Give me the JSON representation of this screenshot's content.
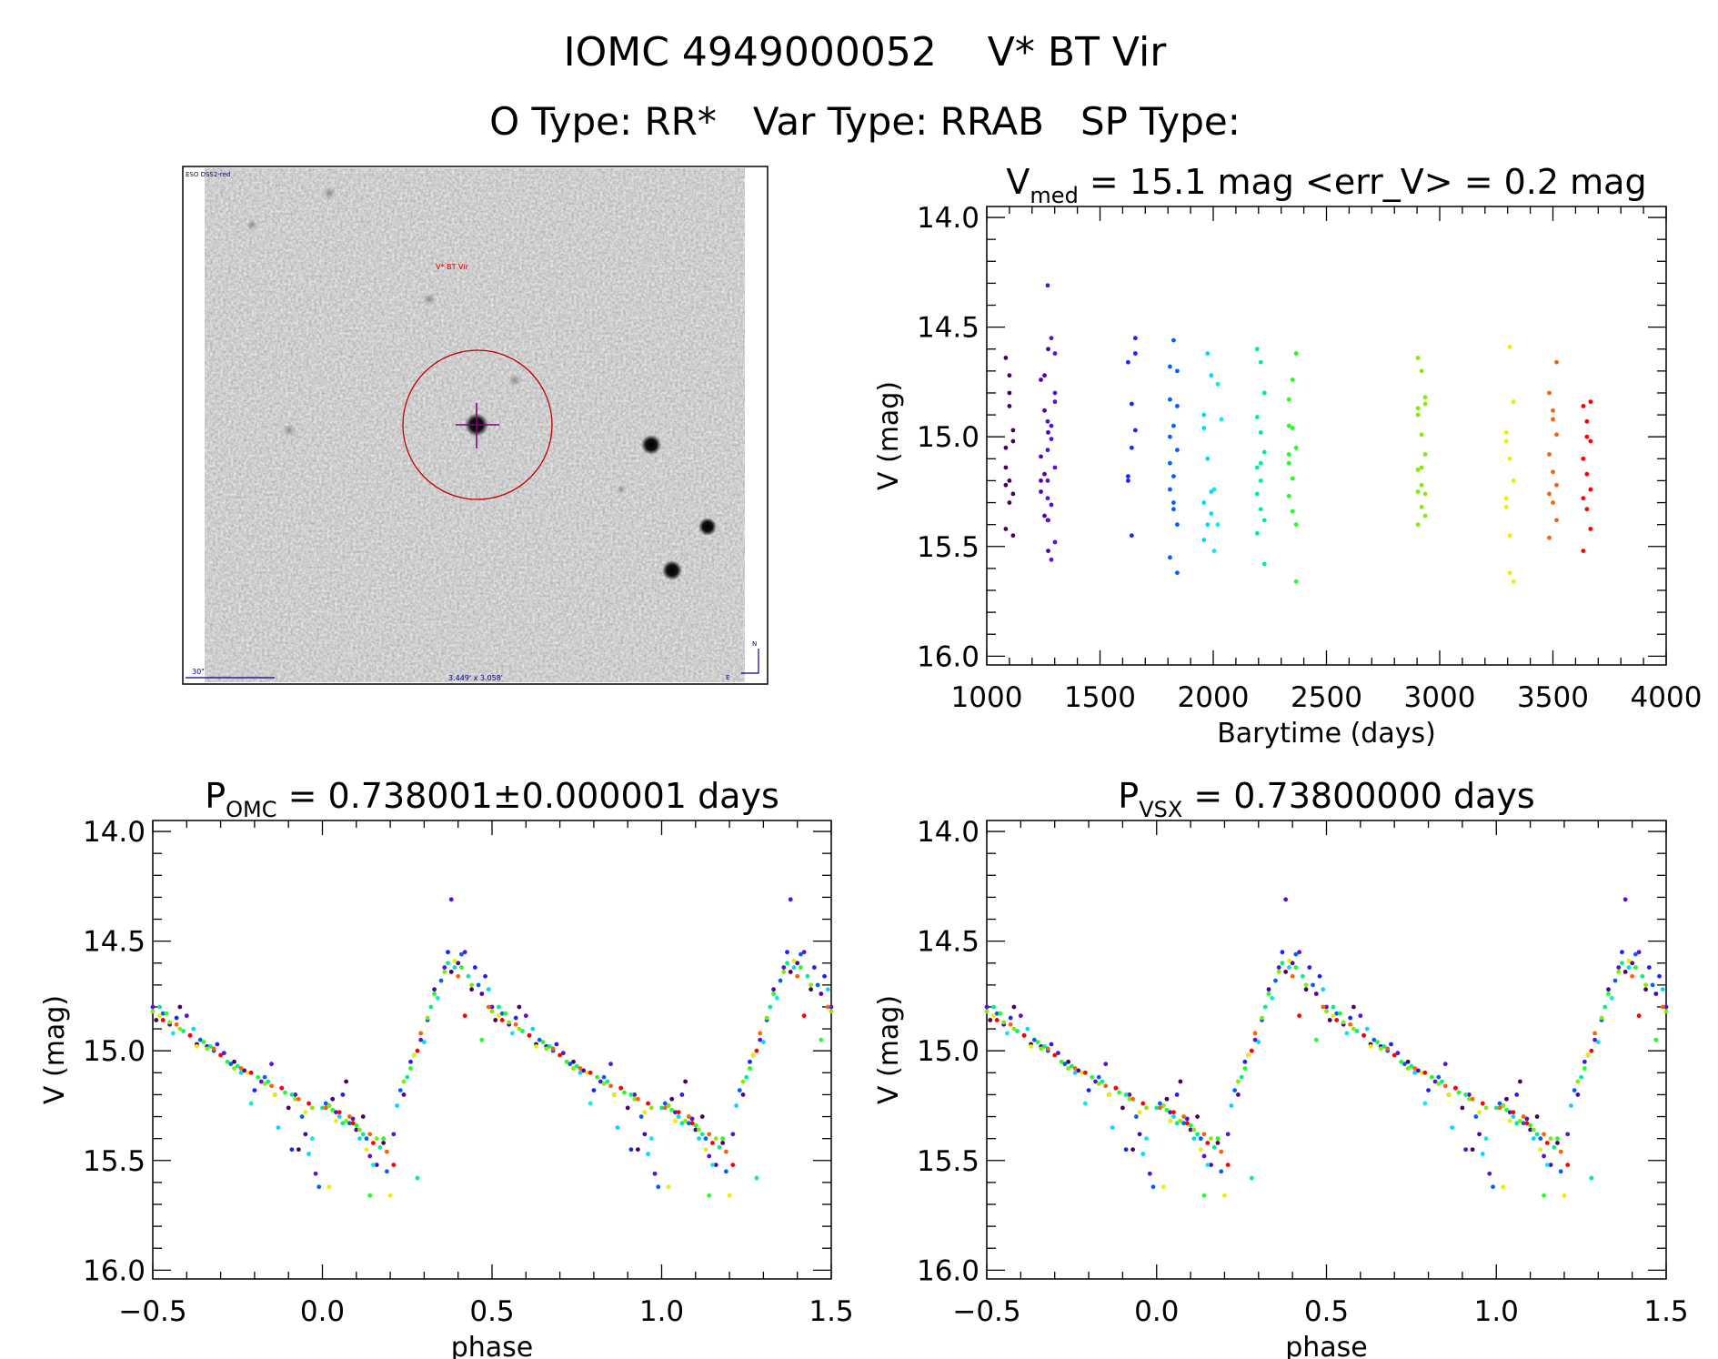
{
  "header": {
    "line1": "IOMC 4949000052    V* BT Vir",
    "line2": "O Type: RR*   Var Type: RRAB   SP Type:"
  },
  "finder": {
    "survey": "ESO DSS2-red",
    "target_label": "V* BT Vir",
    "scale_label": "30\"",
    "fov_label": "3.449' x 3.058'",
    "north": "N",
    "east": "E"
  },
  "colors": {
    "axis": "#000000",
    "circle": "#c00000",
    "crosshair": "#800080",
    "finder_text": "#00008b"
  },
  "chart_data": [
    {
      "id": "timeseries",
      "type": "scatter",
      "title": {
        "main": "V",
        "sub": "med",
        "rest": " = 15.1 mag <err_V> = 0.2 mag"
      },
      "xlabel": "Barytime (days)",
      "ylabel": "V (mag)",
      "xlim": [
        1000,
        4000
      ],
      "ylim": [
        13.95,
        16.04
      ],
      "y_inverted": true,
      "xticks": [
        "1000",
        "1500",
        "2000",
        "2500",
        "3000",
        "3500",
        "4000"
      ],
      "xtick_values": [
        1000,
        1500,
        2000,
        2500,
        3000,
        3500,
        4000
      ],
      "xminor": 100,
      "yticks": [
        "14.0",
        "14.5",
        "15.0",
        "15.5",
        "16.0"
      ],
      "ytick_values": [
        14.0,
        14.5,
        15.0,
        15.5,
        16.0
      ],
      "yminor": 0.1
    },
    {
      "id": "phase_omc",
      "type": "scatter",
      "title": {
        "main": "P",
        "sub": "OMC",
        "rest": " = 0.738001±0.000001 days"
      },
      "xlabel": "phase",
      "ylabel": "V (mag)",
      "xlim": [
        -0.5,
        1.5
      ],
      "ylim": [
        13.95,
        16.04
      ],
      "y_inverted": true,
      "period_days": 0.738001,
      "xticks": [
        "−0.5",
        "0.0",
        "0.5",
        "1.0",
        "1.5"
      ],
      "xtick_values": [
        -0.5,
        0.0,
        0.5,
        1.0,
        1.5
      ],
      "xminor": 0.1,
      "yticks": [
        "14.0",
        "14.5",
        "15.0",
        "15.5",
        "16.0"
      ],
      "ytick_values": [
        14.0,
        14.5,
        15.0,
        15.5,
        16.0
      ],
      "yminor": 0.1
    },
    {
      "id": "phase_vsx",
      "type": "scatter",
      "title": {
        "main": "P",
        "sub": "VSX",
        "rest": " = 0.73800000 days"
      },
      "xlabel": "phase",
      "ylabel": "V (mag)",
      "xlim": [
        -0.5,
        1.5
      ],
      "ylim": [
        13.95,
        16.04
      ],
      "y_inverted": true,
      "period_days": 0.738,
      "xticks": [
        "−0.5",
        "0.0",
        "0.5",
        "1.0",
        "1.5"
      ],
      "xtick_values": [
        -0.5,
        0.0,
        0.5,
        1.0,
        1.5
      ],
      "xminor": 0.1,
      "yticks": [
        "14.0",
        "14.5",
        "15.0",
        "15.5",
        "16.0"
      ],
      "ytick_values": [
        14.0,
        14.5,
        15.0,
        15.5,
        16.0
      ],
      "yminor": 0.1
    }
  ],
  "seasons": [
    {
      "t": 1100,
      "color": "#4b0060",
      "points": [
        [
          0.03,
          15.22
        ],
        [
          0.12,
          15.3
        ],
        [
          0.27,
          15.02
        ],
        [
          0.38,
          14.64
        ],
        [
          0.51,
          14.86
        ],
        [
          0.63,
          14.97
        ],
        [
          0.74,
          15.05
        ],
        [
          0.86,
          15.2
        ],
        [
          0.93,
          15.45
        ],
        [
          0.18,
          15.42
        ],
        [
          0.44,
          14.72
        ],
        [
          0.9,
          15.26
        ],
        [
          0.07,
          15.14
        ],
        [
          0.58,
          14.8
        ]
      ]
    },
    {
      "t": 1255,
      "color": "#5000b0",
      "points": [
        [
          0.02,
          15.25
        ],
        [
          0.1,
          15.36
        ],
        [
          0.16,
          15.52
        ],
        [
          0.24,
          15.2
        ],
        [
          0.33,
          14.72
        ],
        [
          0.4,
          14.6
        ],
        [
          0.47,
          14.74
        ],
        [
          0.55,
          14.88
        ],
        [
          0.66,
          14.98
        ],
        [
          0.77,
          15.09
        ],
        [
          0.88,
          15.17
        ],
        [
          0.95,
          15.38
        ]
      ]
    },
    {
      "t": 1285,
      "color": "#5a10d8",
      "points": [
        [
          0.04,
          15.28
        ],
        [
          0.09,
          15.31
        ],
        [
          0.14,
          15.48
        ],
        [
          0.21,
          15.38
        ],
        [
          0.29,
          14.95
        ],
        [
          0.36,
          14.62
        ],
        [
          0.38,
          14.31
        ],
        [
          0.42,
          14.55
        ],
        [
          0.5,
          14.8
        ],
        [
          0.61,
          14.93
        ],
        [
          0.71,
          15.01
        ],
        [
          0.82,
          15.14
        ],
        [
          0.92,
          15.2
        ],
        [
          0.98,
          15.56
        ],
        [
          0.6,
          14.84
        ],
        [
          0.85,
          15.06
        ]
      ]
    },
    {
      "t": 1640,
      "color": "#2020ff",
      "points": [
        [
          0.06,
          15.2
        ],
        [
          0.26,
          15.05
        ],
        [
          0.37,
          14.55
        ],
        [
          0.48,
          14.66
        ],
        [
          0.57,
          14.85
        ],
        [
          0.69,
          14.97
        ],
        [
          0.8,
          15.18
        ],
        [
          0.91,
          15.45
        ],
        [
          0.45,
          14.62
        ]
      ]
    },
    {
      "t": 1825,
      "color": "#0060ff",
      "points": [
        [
          0.01,
          15.24
        ],
        [
          0.08,
          15.33
        ],
        [
          0.13,
          15.4
        ],
        [
          0.19,
          15.55
        ],
        [
          0.23,
          15.18
        ],
        [
          0.31,
          14.86
        ],
        [
          0.35,
          14.68
        ],
        [
          0.41,
          14.56
        ],
        [
          0.46,
          14.7
        ],
        [
          0.53,
          14.83
        ],
        [
          0.64,
          14.95
        ],
        [
          0.73,
          15.06
        ],
        [
          0.83,
          15.12
        ],
        [
          0.94,
          15.3
        ],
        [
          0.99,
          15.62
        ],
        [
          0.68,
          15.0
        ]
      ]
    },
    {
      "t": 1975,
      "color": "#00d8ff",
      "points": [
        [
          0.05,
          15.3
        ],
        [
          0.11,
          15.4
        ],
        [
          0.22,
          15.25
        ],
        [
          0.3,
          14.96
        ],
        [
          0.39,
          14.62
        ],
        [
          0.49,
          14.72
        ],
        [
          0.62,
          14.9
        ],
        [
          0.76,
          15.1
        ],
        [
          0.87,
          15.35
        ],
        [
          0.96,
          15.47
        ]
      ]
    },
    {
      "t": 2020,
      "color": "#10e8f0",
      "points": [
        [
          0.15,
          15.52
        ],
        [
          0.34,
          14.76
        ],
        [
          0.56,
          14.92
        ],
        [
          0.79,
          15.24
        ],
        [
          0.97,
          15.4
        ]
      ]
    },
    {
      "t": 2210,
      "color": "#00f090",
      "points": [
        [
          0.0,
          15.26
        ],
        [
          0.06,
          15.33
        ],
        [
          0.12,
          15.38
        ],
        [
          0.17,
          15.44
        ],
        [
          0.25,
          15.12
        ],
        [
          0.32,
          14.8
        ],
        [
          0.37,
          14.6
        ],
        [
          0.43,
          14.66
        ],
        [
          0.52,
          14.8
        ],
        [
          0.59,
          14.91
        ],
        [
          0.67,
          14.98
        ],
        [
          0.75,
          15.07
        ],
        [
          0.84,
          15.14
        ],
        [
          0.91,
          15.2
        ],
        [
          0.28,
          15.58
        ]
      ]
    },
    {
      "t": 2350,
      "color": "#20ff20",
      "points": [
        [
          0.03,
          15.27
        ],
        [
          0.1,
          15.34
        ],
        [
          0.18,
          15.4
        ],
        [
          0.26,
          15.08
        ],
        [
          0.33,
          14.74
        ],
        [
          0.41,
          14.62
        ],
        [
          0.54,
          14.83
        ],
        [
          0.65,
          14.96
        ],
        [
          0.72,
          15.05
        ],
        [
          0.81,
          15.12
        ],
        [
          0.89,
          15.19
        ],
        [
          0.14,
          15.66
        ],
        [
          0.47,
          14.95
        ]
      ]
    },
    {
      "t": 2920,
      "color": "#80ee00",
      "points": [
        [
          0.02,
          15.25
        ],
        [
          0.07,
          15.32
        ],
        [
          0.11,
          15.36
        ],
        [
          0.16,
          15.4
        ],
        [
          0.24,
          15.14
        ],
        [
          0.31,
          14.85
        ],
        [
          0.36,
          14.64
        ],
        [
          0.44,
          14.7
        ],
        [
          0.5,
          14.82
        ],
        [
          0.58,
          14.9
        ],
        [
          0.66,
          14.99
        ],
        [
          0.74,
          15.08
        ],
        [
          0.83,
          15.15
        ],
        [
          0.92,
          15.22
        ],
        [
          0.97,
          15.26
        ],
        [
          0.55,
          14.87
        ]
      ]
    },
    {
      "t": 3310,
      "color": "#e8f000",
      "points": [
        [
          0.04,
          15.32
        ],
        [
          0.13,
          15.45
        ],
        [
          0.2,
          15.66
        ],
        [
          0.27,
          15.02
        ],
        [
          0.39,
          14.59
        ],
        [
          0.52,
          14.84
        ],
        [
          0.63,
          14.98
        ],
        [
          0.78,
          15.1
        ],
        [
          0.86,
          15.2
        ],
        [
          0.95,
          15.28
        ],
        [
          0.02,
          15.62
        ]
      ]
    },
    {
      "t": 3500,
      "color": "#ff6000",
      "points": [
        [
          0.01,
          15.26
        ],
        [
          0.08,
          15.3
        ],
        [
          0.14,
          15.38
        ],
        [
          0.19,
          15.46
        ],
        [
          0.29,
          14.92
        ],
        [
          0.4,
          14.66
        ],
        [
          0.49,
          14.8
        ],
        [
          0.57,
          14.88
        ],
        [
          0.68,
          14.99
        ],
        [
          0.76,
          15.08
        ],
        [
          0.85,
          15.16
        ],
        [
          0.93,
          15.22
        ]
      ]
    },
    {
      "t": 3650,
      "color": "#ff0000",
      "points": [
        [
          0.05,
          15.28
        ],
        [
          0.09,
          15.33
        ],
        [
          0.15,
          15.42
        ],
        [
          0.21,
          15.52
        ],
        [
          0.28,
          15.0
        ],
        [
          0.42,
          14.84
        ],
        [
          0.53,
          14.86
        ],
        [
          0.61,
          14.93
        ],
        [
          0.7,
          15.02
        ],
        [
          0.79,
          15.1
        ],
        [
          0.88,
          15.17
        ],
        [
          0.96,
          15.24
        ]
      ]
    }
  ]
}
